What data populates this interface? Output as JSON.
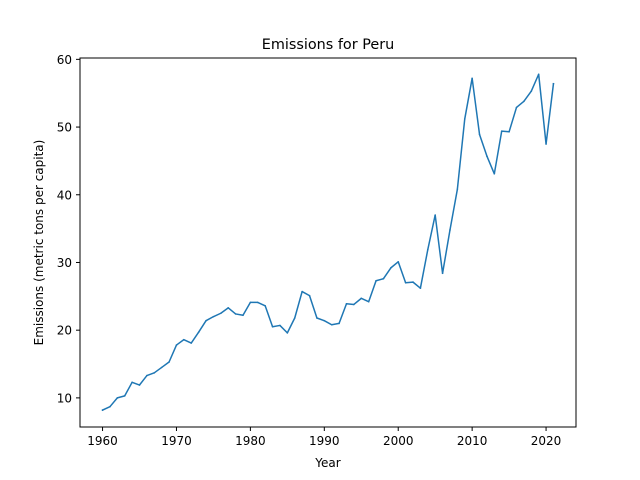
{
  "chart_data": {
    "type": "line",
    "title": "Emissions for Peru",
    "xlabel": "Year",
    "ylabel": "Emissions (metric tons per capita)",
    "xlim": [
      1956.95,
      2024.05
    ],
    "ylim": [
      5.7,
      60.2
    ],
    "xticks": [
      1960,
      1970,
      1980,
      1990,
      2000,
      2010,
      2020
    ],
    "yticks": [
      10,
      20,
      30,
      40,
      50,
      60
    ],
    "grid": false,
    "line_color": "#1f77b4",
    "series": [
      {
        "x": [
          1960,
          1961,
          1962,
          1963,
          1964,
          1965,
          1966,
          1967,
          1968,
          1969,
          1970,
          1971,
          1972,
          1973,
          1974,
          1975,
          1976,
          1977,
          1978,
          1979,
          1980,
          1981,
          1982,
          1983,
          1984,
          1985,
          1986,
          1987,
          1988,
          1989,
          1990,
          1991,
          1992,
          1993,
          1994,
          1995,
          1996,
          1997,
          1998,
          1999,
          2000,
          2001,
          2002,
          2003,
          2004,
          2005,
          2006,
          2007,
          2008,
          2009,
          2010,
          2011,
          2012,
          2013,
          2014,
          2015,
          2016,
          2017,
          2018,
          2019,
          2020,
          2021
        ],
        "values": [
          8.2,
          8.7,
          10.0,
          10.3,
          12.3,
          11.9,
          13.3,
          13.7,
          14.5,
          15.3,
          17.8,
          18.6,
          18.1,
          19.7,
          21.4,
          22.0,
          22.5,
          23.3,
          22.4,
          22.2,
          24.1,
          24.1,
          23.6,
          20.5,
          20.7,
          19.6,
          21.8,
          25.7,
          25.1,
          21.8,
          21.4,
          20.8,
          21.0,
          23.9,
          23.8,
          24.7,
          24.2,
          27.3,
          27.6,
          29.2,
          30.1,
          27.0,
          27.1,
          26.2,
          31.9,
          37.0,
          28.4,
          34.8,
          40.8,
          51.2,
          57.2,
          48.9,
          45.7,
          43.1,
          49.4,
          49.3,
          52.9,
          53.8,
          55.3,
          57.8,
          47.5,
          56.4
        ]
      }
    ]
  }
}
